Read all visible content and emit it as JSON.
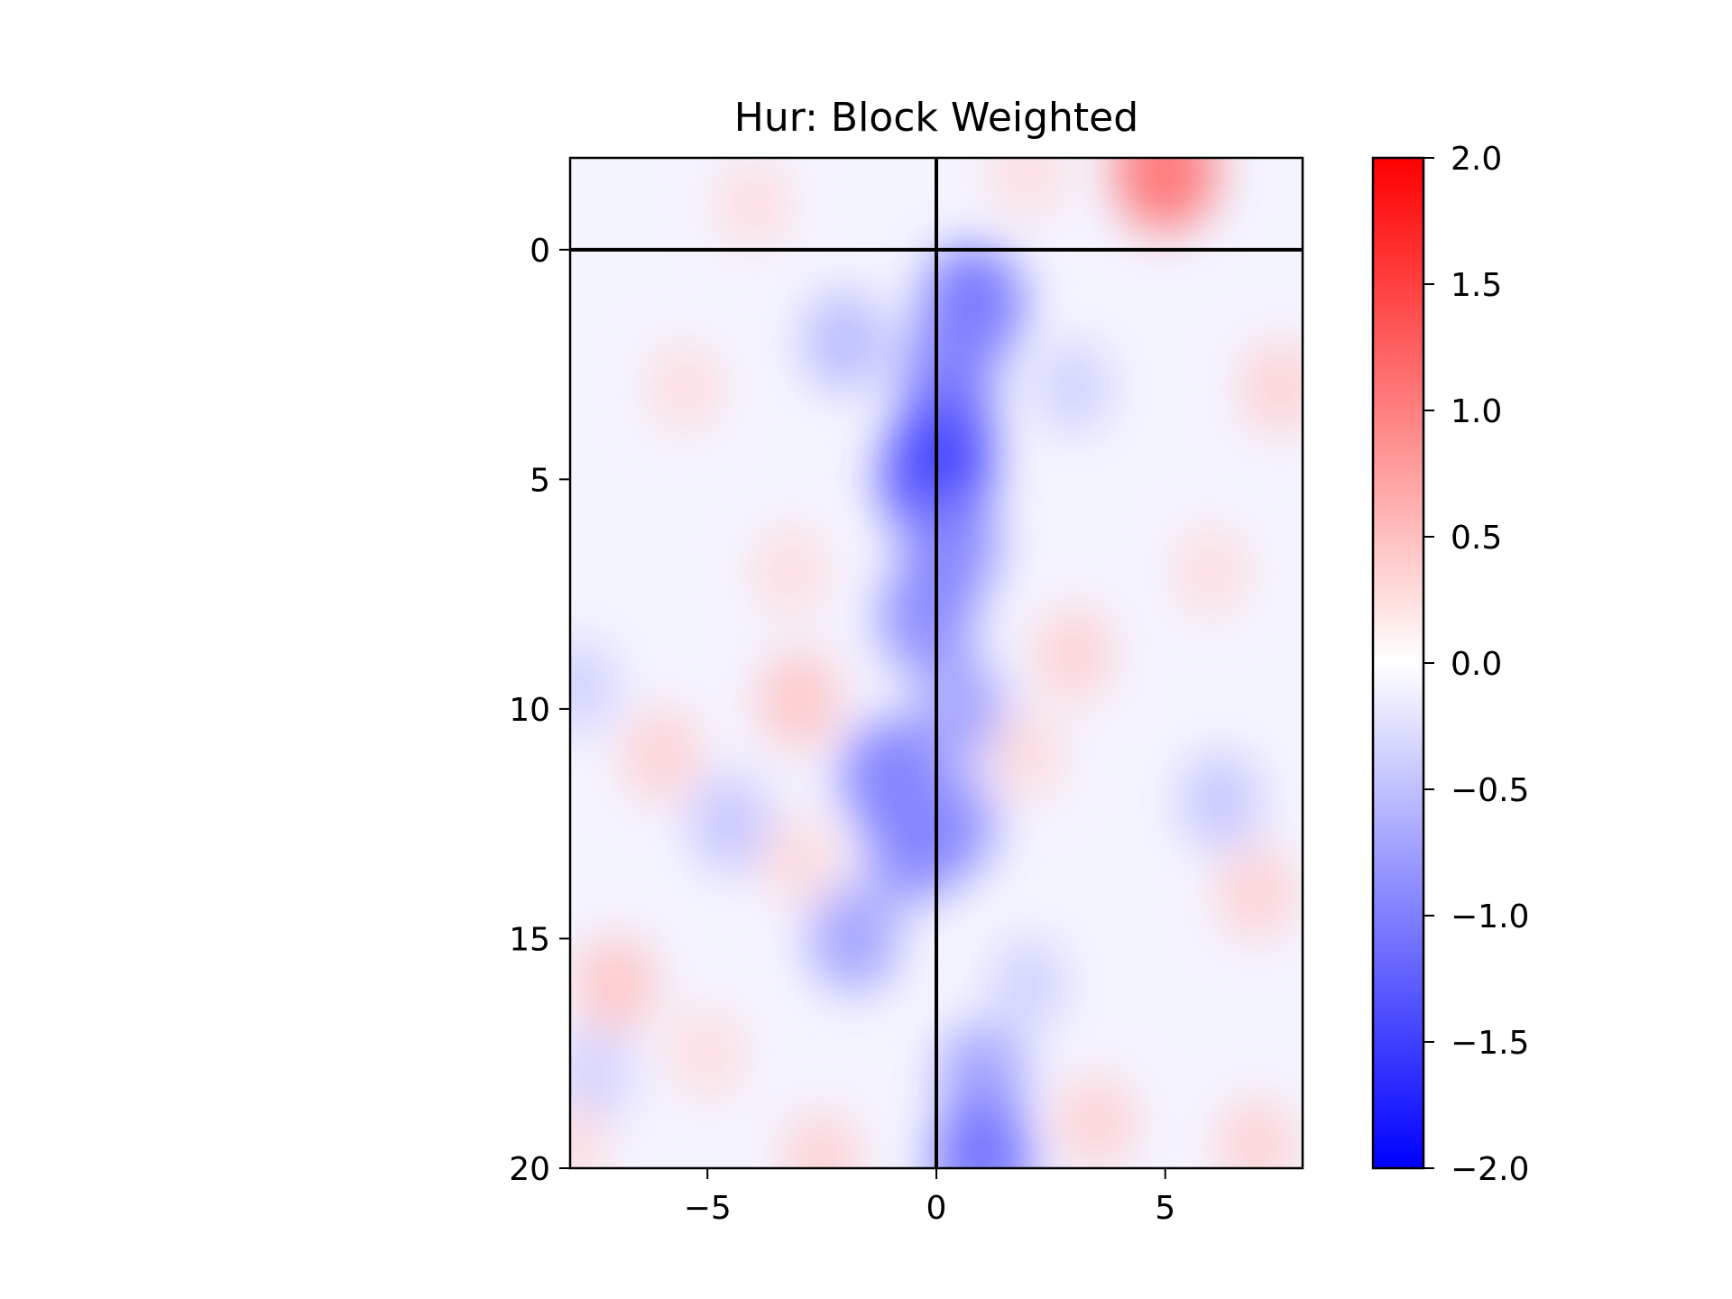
{
  "chart_data": {
    "type": "heatmap",
    "title": "Hur: Block Weighted",
    "xlabel": "",
    "ylabel": "",
    "xlim": [
      -8,
      8
    ],
    "ylim": [
      20,
      -2
    ],
    "x_ticks": [
      -5,
      0,
      5
    ],
    "x_tick_labels": [
      "−5",
      "0",
      "5"
    ],
    "y_ticks": [
      0,
      5,
      10,
      15,
      20
    ],
    "y_tick_labels": [
      "0",
      "5",
      "10",
      "15",
      "20"
    ],
    "reference_lines": {
      "vertical_x": 0,
      "horizontal_y": 0
    },
    "colormap": "bwr",
    "colors": {
      "low": "#0000ff",
      "mid": "#ffffff",
      "high": "#ff0000",
      "line": "#000000"
    },
    "grid": false,
    "colorbar": {
      "range": [
        -2,
        2
      ],
      "ticks": [
        2.0,
        1.5,
        1.0,
        0.5,
        0.0,
        -0.5,
        -1.0,
        -1.5,
        -2.0
      ],
      "tick_labels": [
        "2.0",
        "1.5",
        "1.0",
        "0.5",
        "0.0",
        "−0.5",
        "−1.0",
        "−1.5",
        "−2.0"
      ]
    },
    "features": [
      {
        "x": 0.8,
        "y": 1.2,
        "value": -1.2
      },
      {
        "x": 0.3,
        "y": 2.5,
        "value": -1.0
      },
      {
        "x": 0.2,
        "y": 4.0,
        "value": -1.2
      },
      {
        "x": 0.0,
        "y": 5.0,
        "value": -1.5
      },
      {
        "x": 0.3,
        "y": 6.5,
        "value": -1.0
      },
      {
        "x": -0.2,
        "y": 8.0,
        "value": -1.0
      },
      {
        "x": 0.5,
        "y": 10.0,
        "value": -0.8
      },
      {
        "x": -1.0,
        "y": 11.5,
        "value": -1.1
      },
      {
        "x": 0.3,
        "y": 12.5,
        "value": -0.9
      },
      {
        "x": -0.5,
        "y": 13.0,
        "value": -1.0
      },
      {
        "x": -1.8,
        "y": 15.0,
        "value": -0.8
      },
      {
        "x": 1.0,
        "y": 18.0,
        "value": -0.8
      },
      {
        "x": 1.0,
        "y": 19.8,
        "value": -1.2
      },
      {
        "x": -2.0,
        "y": 2.0,
        "value": -0.6
      },
      {
        "x": 3.0,
        "y": 3.0,
        "value": -0.4
      },
      {
        "x": 6.2,
        "y": 12.0,
        "value": -0.5
      },
      {
        "x": -7.8,
        "y": 9.5,
        "value": -0.4
      },
      {
        "x": -4.5,
        "y": 12.5,
        "value": -0.5
      },
      {
        "x": 2.0,
        "y": 16.0,
        "value": -0.4
      },
      {
        "x": -7.5,
        "y": 18.0,
        "value": -0.4
      },
      {
        "x": 5.0,
        "y": -1.7,
        "value": 1.2
      },
      {
        "x": 2.0,
        "y": -1.7,
        "value": 0.3
      },
      {
        "x": -4.0,
        "y": -1.0,
        "value": 0.3
      },
      {
        "x": -5.5,
        "y": 3.0,
        "value": 0.3
      },
      {
        "x": 7.5,
        "y": 3.0,
        "value": 0.4
      },
      {
        "x": -3.0,
        "y": 9.8,
        "value": 0.5
      },
      {
        "x": -6.0,
        "y": 11.0,
        "value": 0.4
      },
      {
        "x": -7.0,
        "y": 16.0,
        "value": 0.5
      },
      {
        "x": -5.0,
        "y": 17.5,
        "value": 0.3
      },
      {
        "x": 3.5,
        "y": 19.0,
        "value": 0.4
      },
      {
        "x": 7.0,
        "y": 19.5,
        "value": 0.4
      },
      {
        "x": 7.0,
        "y": 14.0,
        "value": 0.4
      },
      {
        "x": 6.0,
        "y": 7.0,
        "value": 0.3
      },
      {
        "x": 3.0,
        "y": 8.8,
        "value": 0.4
      },
      {
        "x": 2.0,
        "y": 11.0,
        "value": 0.3
      },
      {
        "x": -3.2,
        "y": 7.0,
        "value": 0.3
      },
      {
        "x": -3.0,
        "y": 13.3,
        "value": 0.3
      },
      {
        "x": -2.5,
        "y": 19.8,
        "value": 0.4
      },
      {
        "x": -8.0,
        "y": 19.5,
        "value": 0.3
      }
    ]
  }
}
